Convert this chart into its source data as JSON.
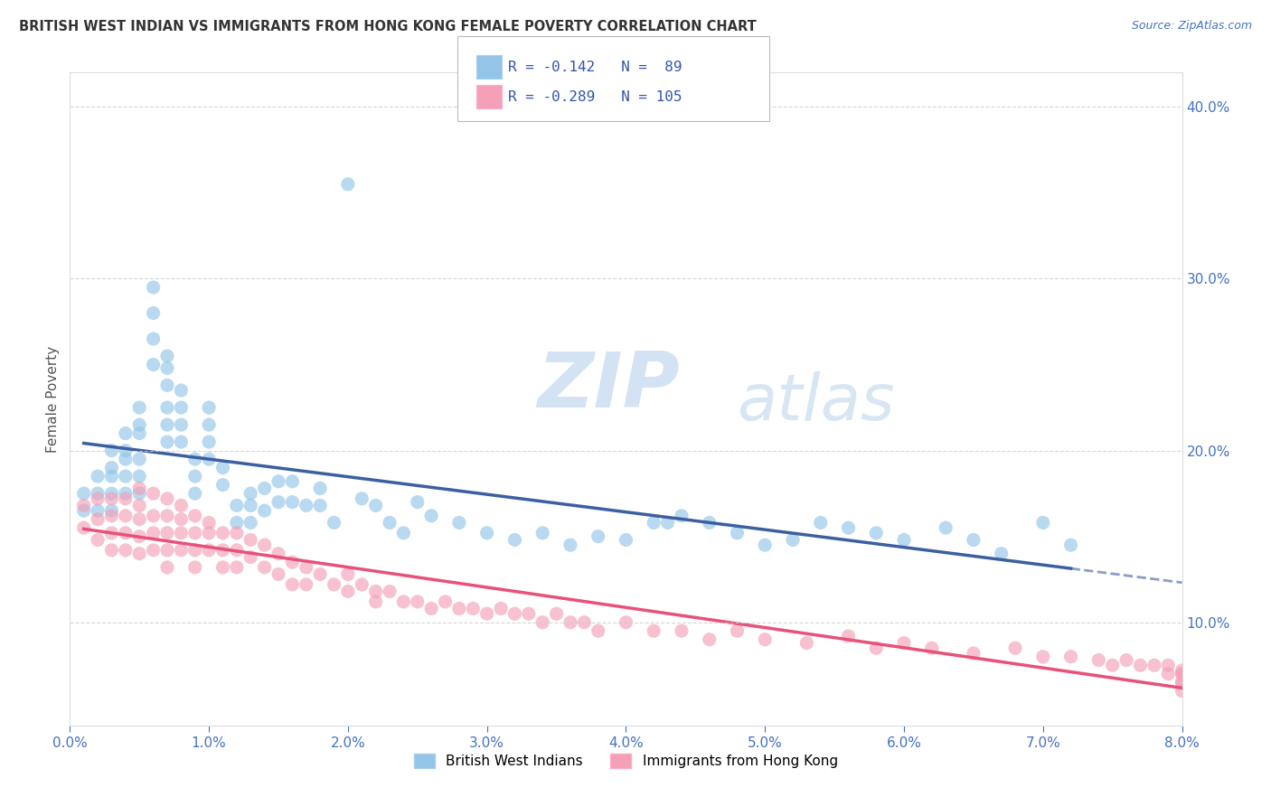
{
  "title": "BRITISH WEST INDIAN VS IMMIGRANTS FROM HONG KONG FEMALE POVERTY CORRELATION CHART",
  "source": "Source: ZipAtlas.com",
  "ylabel": "Female Poverty",
  "legend_label1": "British West Indians",
  "legend_label2": "Immigrants from Hong Kong",
  "r1": -0.142,
  "n1": 89,
  "r2": -0.289,
  "n2": 105,
  "x_min": 0.0,
  "x_max": 0.08,
  "y_min": 0.04,
  "y_max": 0.42,
  "color1": "#92C5E8",
  "color2": "#F4A0B8",
  "line1_color": "#3B5FA0",
  "line2_color": "#E8517A",
  "watermark_zip": "ZIP",
  "watermark_atlas": "atlas",
  "blue_scatter_x": [
    0.001,
    0.001,
    0.002,
    0.002,
    0.002,
    0.003,
    0.003,
    0.003,
    0.003,
    0.003,
    0.004,
    0.004,
    0.004,
    0.004,
    0.004,
    0.005,
    0.005,
    0.005,
    0.005,
    0.005,
    0.005,
    0.006,
    0.006,
    0.006,
    0.006,
    0.007,
    0.007,
    0.007,
    0.007,
    0.007,
    0.007,
    0.008,
    0.008,
    0.008,
    0.008,
    0.009,
    0.009,
    0.009,
    0.01,
    0.01,
    0.01,
    0.01,
    0.011,
    0.011,
    0.012,
    0.012,
    0.013,
    0.013,
    0.013,
    0.014,
    0.014,
    0.015,
    0.015,
    0.016,
    0.016,
    0.017,
    0.018,
    0.018,
    0.019,
    0.02,
    0.021,
    0.022,
    0.023,
    0.024,
    0.025,
    0.026,
    0.028,
    0.03,
    0.032,
    0.034,
    0.036,
    0.038,
    0.04,
    0.042,
    0.043,
    0.044,
    0.046,
    0.048,
    0.05,
    0.052,
    0.054,
    0.056,
    0.058,
    0.06,
    0.063,
    0.065,
    0.067,
    0.07,
    0.072
  ],
  "blue_scatter_y": [
    0.175,
    0.165,
    0.185,
    0.175,
    0.165,
    0.2,
    0.19,
    0.185,
    0.175,
    0.165,
    0.21,
    0.2,
    0.195,
    0.185,
    0.175,
    0.225,
    0.215,
    0.21,
    0.195,
    0.185,
    0.175,
    0.295,
    0.28,
    0.265,
    0.25,
    0.255,
    0.248,
    0.238,
    0.225,
    0.215,
    0.205,
    0.235,
    0.225,
    0.215,
    0.205,
    0.195,
    0.185,
    0.175,
    0.225,
    0.215,
    0.205,
    0.195,
    0.19,
    0.18,
    0.168,
    0.158,
    0.175,
    0.168,
    0.158,
    0.178,
    0.165,
    0.182,
    0.17,
    0.182,
    0.17,
    0.168,
    0.178,
    0.168,
    0.158,
    0.355,
    0.172,
    0.168,
    0.158,
    0.152,
    0.17,
    0.162,
    0.158,
    0.152,
    0.148,
    0.152,
    0.145,
    0.15,
    0.148,
    0.158,
    0.158,
    0.162,
    0.158,
    0.152,
    0.145,
    0.148,
    0.158,
    0.155,
    0.152,
    0.148,
    0.155,
    0.148,
    0.14,
    0.158,
    0.145
  ],
  "pink_scatter_x": [
    0.001,
    0.001,
    0.002,
    0.002,
    0.002,
    0.003,
    0.003,
    0.003,
    0.003,
    0.004,
    0.004,
    0.004,
    0.004,
    0.005,
    0.005,
    0.005,
    0.005,
    0.005,
    0.006,
    0.006,
    0.006,
    0.006,
    0.007,
    0.007,
    0.007,
    0.007,
    0.007,
    0.008,
    0.008,
    0.008,
    0.008,
    0.009,
    0.009,
    0.009,
    0.009,
    0.01,
    0.01,
    0.01,
    0.011,
    0.011,
    0.011,
    0.012,
    0.012,
    0.012,
    0.013,
    0.013,
    0.014,
    0.014,
    0.015,
    0.015,
    0.016,
    0.016,
    0.017,
    0.017,
    0.018,
    0.019,
    0.02,
    0.02,
    0.021,
    0.022,
    0.022,
    0.023,
    0.024,
    0.025,
    0.026,
    0.027,
    0.028,
    0.029,
    0.03,
    0.031,
    0.032,
    0.033,
    0.034,
    0.035,
    0.036,
    0.037,
    0.038,
    0.04,
    0.042,
    0.044,
    0.046,
    0.048,
    0.05,
    0.053,
    0.056,
    0.058,
    0.06,
    0.062,
    0.065,
    0.068,
    0.07,
    0.072,
    0.074,
    0.075,
    0.076,
    0.077,
    0.078,
    0.079,
    0.079,
    0.08,
    0.08,
    0.08,
    0.08,
    0.08,
    0.08
  ],
  "pink_scatter_y": [
    0.168,
    0.155,
    0.172,
    0.16,
    0.148,
    0.172,
    0.162,
    0.152,
    0.142,
    0.172,
    0.162,
    0.152,
    0.142,
    0.178,
    0.168,
    0.16,
    0.15,
    0.14,
    0.175,
    0.162,
    0.152,
    0.142,
    0.172,
    0.162,
    0.152,
    0.142,
    0.132,
    0.168,
    0.16,
    0.152,
    0.142,
    0.162,
    0.152,
    0.142,
    0.132,
    0.158,
    0.152,
    0.142,
    0.152,
    0.142,
    0.132,
    0.152,
    0.142,
    0.132,
    0.148,
    0.138,
    0.145,
    0.132,
    0.14,
    0.128,
    0.135,
    0.122,
    0.132,
    0.122,
    0.128,
    0.122,
    0.128,
    0.118,
    0.122,
    0.118,
    0.112,
    0.118,
    0.112,
    0.112,
    0.108,
    0.112,
    0.108,
    0.108,
    0.105,
    0.108,
    0.105,
    0.105,
    0.1,
    0.105,
    0.1,
    0.1,
    0.095,
    0.1,
    0.095,
    0.095,
    0.09,
    0.095,
    0.09,
    0.088,
    0.092,
    0.085,
    0.088,
    0.085,
    0.082,
    0.085,
    0.08,
    0.08,
    0.078,
    0.075,
    0.078,
    0.075,
    0.075,
    0.07,
    0.075,
    0.072,
    0.065,
    0.07,
    0.065,
    0.06,
    0.07
  ],
  "yticks": [
    0.1,
    0.2,
    0.3,
    0.4
  ],
  "xticks": [
    0.0,
    0.01,
    0.02,
    0.03,
    0.04,
    0.05,
    0.06,
    0.07,
    0.08
  ]
}
